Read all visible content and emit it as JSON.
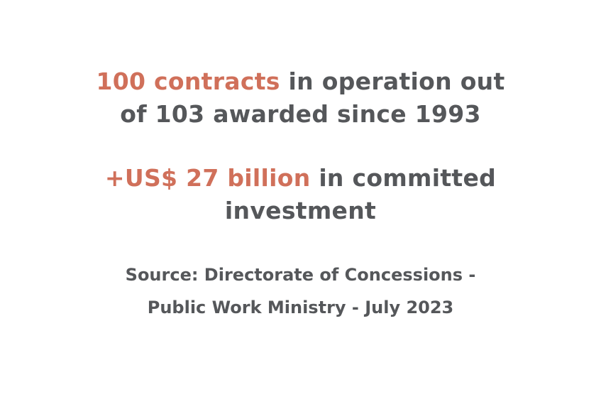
{
  "stats": [
    {
      "highlight": "100 contracts",
      "text": "in operation out of 103 awarded since 1993"
    },
    {
      "highlight": "+US$ 27 billion",
      "text": "in committed investment"
    }
  ],
  "source": "Source: Directorate of Concessions - Public Work Ministry - July 2023"
}
